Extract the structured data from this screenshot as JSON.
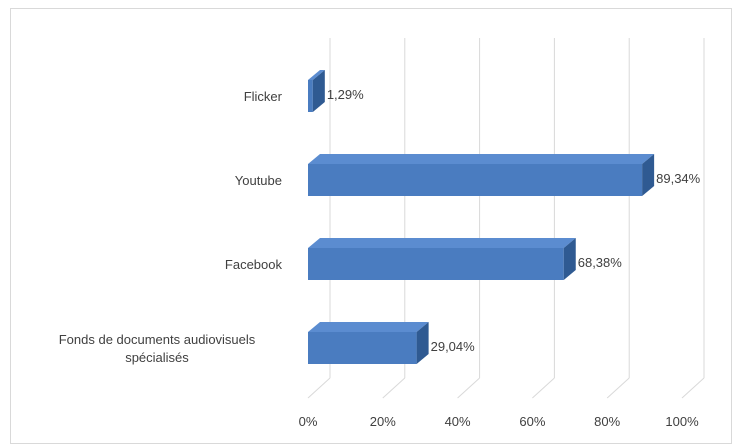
{
  "chart_data": {
    "type": "bar",
    "orientation": "horizontal",
    "style": "3d",
    "categories": [
      "Flicker",
      "Youtube",
      "Facebook",
      [
        "Fonds de documents audiovisuels",
        "spécialisés"
      ]
    ],
    "values": [
      1.29,
      89.34,
      68.38,
      29.04
    ],
    "value_labels": [
      "1,29%",
      "89,34%",
      "68,38%",
      "29,04%"
    ],
    "xlim": [
      0,
      100
    ],
    "x_ticks": [
      0,
      20,
      40,
      60,
      80,
      100
    ],
    "x_tick_labels": [
      "0%",
      "20%",
      "40%",
      "60%",
      "80%",
      "100%"
    ],
    "grid": true,
    "legend": "none",
    "colors": {
      "bar_front": "#4a7cc0",
      "bar_top": "#5b8cd0",
      "bar_side": "#2f5a92",
      "grid": "#d9d9d9"
    }
  }
}
